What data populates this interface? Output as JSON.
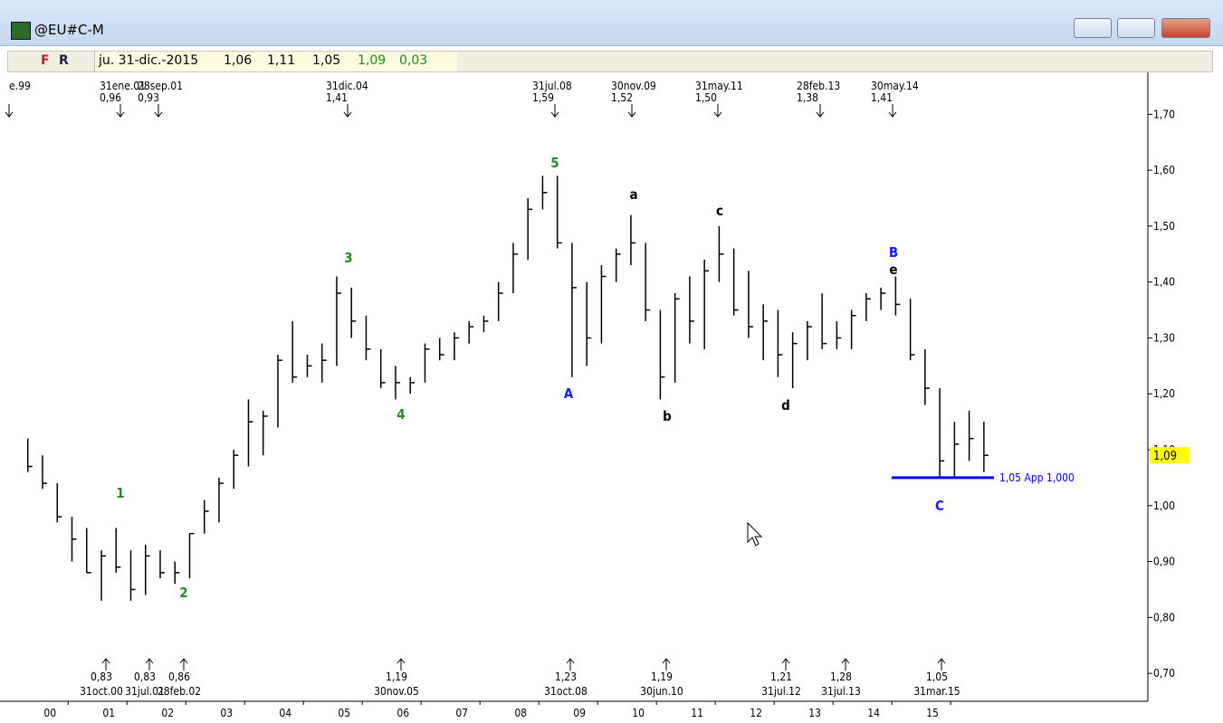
{
  "window": {
    "title": "@EU#C-M"
  },
  "toolbar": {
    "f": "F",
    "r": "R",
    "date": "ju. 31-dic.-2015",
    "open": "1,06",
    "high": "1,11",
    "low": "1,05",
    "close": "1,09",
    "change": "0,03"
  },
  "chart_data": {
    "type": "ohlc",
    "x": [
      1999.5,
      1999.75,
      2000,
      2000.25,
      2000.5,
      2000.75,
      2001,
      2001.25,
      2001.5,
      2001.75,
      2002,
      2002.25,
      2002.5,
      2002.75,
      2003,
      2003.25,
      2003.5,
      2003.75,
      2004,
      2004.25,
      2004.5,
      2004.75,
      2005,
      2005.25,
      2005.5,
      2005.75,
      2006,
      2006.25,
      2006.5,
      2006.75,
      2007,
      2007.25,
      2007.5,
      2007.75,
      2008,
      2008.25,
      2008.5,
      2008.75,
      2009,
      2009.25,
      2009.5,
      2009.75,
      2010,
      2010.25,
      2010.5,
      2010.75,
      2011,
      2011.25,
      2011.5,
      2011.75,
      2012,
      2012.25,
      2012.5,
      2012.75,
      2013,
      2013.25,
      2013.5,
      2013.75,
      2014,
      2014.25,
      2014.5,
      2014.75,
      2015,
      2015.25,
      2015.5,
      2015.75
    ],
    "high": [
      1.12,
      1.09,
      1.04,
      0.98,
      0.96,
      0.92,
      0.96,
      0.92,
      0.93,
      0.92,
      0.9,
      0.95,
      1.01,
      1.05,
      1.1,
      1.19,
      1.17,
      1.27,
      1.33,
      1.27,
      1.29,
      1.41,
      1.39,
      1.34,
      1.28,
      1.25,
      1.23,
      1.29,
      1.3,
      1.31,
      1.33,
      1.34,
      1.4,
      1.47,
      1.55,
      1.59,
      1.59,
      1.47,
      1.4,
      1.43,
      1.46,
      1.52,
      1.47,
      1.35,
      1.38,
      1.41,
      1.44,
      1.5,
      1.46,
      1.42,
      1.36,
      1.35,
      1.31,
      1.33,
      1.38,
      1.33,
      1.35,
      1.38,
      1.39,
      1.41,
      1.37,
      1.28,
      1.21,
      1.15,
      1.17,
      1.15
    ],
    "low": [
      1.06,
      1.03,
      0.97,
      0.9,
      0.88,
      0.83,
      0.88,
      0.83,
      0.84,
      0.87,
      0.86,
      0.87,
      0.95,
      0.97,
      1.03,
      1.07,
      1.09,
      1.14,
      1.22,
      1.23,
      1.22,
      1.25,
      1.3,
      1.26,
      1.21,
      1.19,
      1.2,
      1.22,
      1.26,
      1.26,
      1.29,
      1.31,
      1.33,
      1.38,
      1.44,
      1.53,
      1.46,
      1.23,
      1.25,
      1.29,
      1.4,
      1.43,
      1.33,
      1.19,
      1.22,
      1.29,
      1.28,
      1.4,
      1.34,
      1.3,
      1.26,
      1.23,
      1.21,
      1.26,
      1.28,
      1.28,
      1.28,
      1.33,
      1.35,
      1.34,
      1.26,
      1.18,
      1.05,
      1.05,
      1.08,
      1.06
    ],
    "close": [
      1.07,
      1.04,
      0.98,
      0.94,
      0.88,
      0.91,
      0.89,
      0.85,
      0.91,
      0.88,
      0.88,
      0.95,
      0.99,
      1.04,
      1.09,
      1.15,
      1.16,
      1.26,
      1.23,
      1.25,
      1.26,
      1.38,
      1.33,
      1.28,
      1.22,
      1.22,
      1.22,
      1.28,
      1.27,
      1.3,
      1.32,
      1.33,
      1.38,
      1.45,
      1.53,
      1.56,
      1.47,
      1.39,
      1.3,
      1.41,
      1.45,
      1.47,
      1.35,
      1.23,
      1.37,
      1.33,
      1.42,
      1.45,
      1.35,
      1.32,
      1.33,
      1.27,
      1.29,
      1.32,
      1.29,
      1.3,
      1.34,
      1.37,
      1.38,
      1.36,
      1.27,
      1.21,
      1.08,
      1.11,
      1.12,
      1.09
    ],
    "xlim": [
      1999.15,
      2018.66
    ],
    "ylim": [
      0.65,
      1.775
    ],
    "xticks": [
      {
        "value": 2000,
        "label": "00"
      },
      {
        "value": 2001,
        "label": "01"
      },
      {
        "value": 2002,
        "label": "02"
      },
      {
        "value": 2003,
        "label": "03"
      },
      {
        "value": 2004,
        "label": "04"
      },
      {
        "value": 2005,
        "label": "05"
      },
      {
        "value": 2006,
        "label": "06"
      },
      {
        "value": 2007,
        "label": "07"
      },
      {
        "value": 2008,
        "label": "08"
      },
      {
        "value": 2009,
        "label": "09"
      },
      {
        "value": 2010,
        "label": "10"
      },
      {
        "value": 2011,
        "label": "11"
      },
      {
        "value": 2012,
        "label": "12"
      },
      {
        "value": 2013,
        "label": "13"
      },
      {
        "value": 2014,
        "label": "14"
      },
      {
        "value": 2015,
        "label": "15"
      }
    ],
    "yticks": [
      {
        "value": 0.7,
        "label": "0,70"
      },
      {
        "value": 0.8,
        "label": "0,80"
      },
      {
        "value": 0.9,
        "label": "0,90"
      },
      {
        "value": 1.0,
        "label": "1,00"
      },
      {
        "value": 1.1,
        "label": "1,10"
      },
      {
        "value": 1.2,
        "label": "1,20"
      },
      {
        "value": 1.3,
        "label": "1,30"
      },
      {
        "value": 1.4,
        "label": "1,40"
      },
      {
        "value": 1.5,
        "label": "1,50"
      },
      {
        "value": 1.6,
        "label": "1,60"
      },
      {
        "value": 1.7,
        "label": "1,70"
      }
    ],
    "last_price": {
      "value": 1.09,
      "label": "1,09"
    },
    "level": {
      "value": 1.05,
      "label": "1,05 App 1,000"
    },
    "top_annotations": [
      {
        "date": "e.99",
        "value": ""
      },
      {
        "date": "31ene.01",
        "value": "0,96"
      },
      {
        "date": "28sep.01",
        "value": "0,93"
      },
      {
        "date": "31dic.04",
        "value": "1,41"
      },
      {
        "date": "31jul.08",
        "value": "1,59"
      },
      {
        "date": "30nov.09",
        "value": "1,52"
      },
      {
        "date": "31may.11",
        "value": "1,50"
      },
      {
        "date": "28feb.13",
        "value": "1,38"
      },
      {
        "date": "30may.14",
        "value": "1,41"
      }
    ],
    "bottom_annotations": [
      {
        "value": "0,83",
        "date": "31oct.00"
      },
      {
        "value": "0,83",
        "date": "31jul.01"
      },
      {
        "value": "0,86",
        "date": "28feb.02"
      },
      {
        "value": "1,19",
        "date": "30nov.05"
      },
      {
        "value": "1,23",
        "date": "31oct.08"
      },
      {
        "value": "1,19",
        "date": "30jun.10"
      },
      {
        "value": "1,21",
        "date": "31jul.12"
      },
      {
        "value": "1,28",
        "date": "31jul.13"
      },
      {
        "value": "1,05",
        "date": "31mar.15"
      }
    ],
    "waves": [
      "1",
      "2",
      "3",
      "4",
      "5",
      "A",
      "a",
      "b",
      "c",
      "d",
      "B",
      "e",
      "C"
    ]
  }
}
